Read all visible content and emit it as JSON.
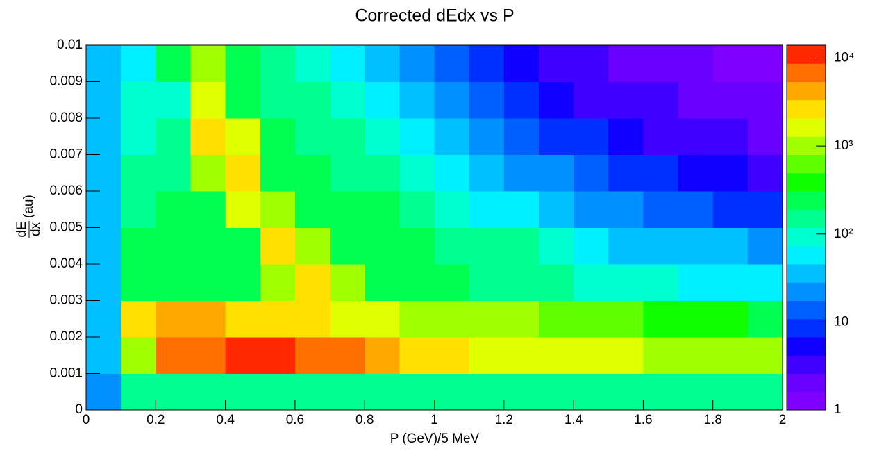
{
  "chart_data": {
    "type": "heatmap",
    "title": "Corrected dEdx vs P",
    "x_label": "P (GeV)/5 MeV",
    "y_label": {
      "numerator": "dE",
      "denominator": "dx",
      "unit": "(au)"
    },
    "xlim": [
      0,
      2
    ],
    "xticks": [
      0,
      0.2,
      0.4,
      0.6,
      0.8,
      1,
      1.2,
      1.4,
      1.6,
      1.8,
      2
    ],
    "ylim": [
      0,
      0.01
    ],
    "yticks": [
      0,
      0.001,
      0.002,
      0.003,
      0.004,
      0.005,
      0.006,
      0.007,
      0.008,
      0.009,
      0.01
    ],
    "x_bins": [
      0,
      0.1,
      0.2,
      0.3,
      0.4,
      0.5,
      0.6,
      0.7,
      0.8,
      0.9,
      1,
      1.1,
      1.2,
      1.3,
      1.4,
      1.5,
      1.6,
      1.7,
      1.8,
      1.9,
      2
    ],
    "y_bins": [
      0,
      0.001,
      0.002,
      0.003,
      0.004,
      0.005,
      0.006,
      0.007,
      0.008,
      0.009,
      0.01
    ],
    "values": [
      [
        20,
        150,
        180,
        180,
        170,
        170,
        160,
        160,
        150,
        150,
        150,
        140,
        140,
        140,
        130,
        130,
        130,
        120,
        120,
        120
      ],
      [
        30,
        1200,
        6000,
        8000,
        9000,
        9000,
        8000,
        7000,
        5000,
        3000,
        2500,
        2000,
        1800,
        1500,
        1400,
        1300,
        1200,
        1100,
        1000,
        1000
      ],
      [
        30,
        3000,
        5000,
        3500,
        3000,
        2800,
        2500,
        2000,
        1500,
        1200,
        1000,
        900,
        800,
        700,
        600,
        500,
        450,
        400,
        350,
        300
      ],
      [
        30,
        300,
        250,
        250,
        300,
        800,
        2500,
        1200,
        300,
        200,
        200,
        180,
        150,
        120,
        100,
        90,
        80,
        70,
        60,
        50
      ],
      [
        30,
        200,
        250,
        250,
        300,
        2500,
        800,
        300,
        200,
        200,
        180,
        150,
        120,
        80,
        60,
        45,
        40,
        35,
        30,
        25
      ],
      [
        30,
        180,
        200,
        250,
        2000,
        1200,
        300,
        200,
        200,
        150,
        100,
        70,
        50,
        35,
        25,
        20,
        15,
        12,
        10,
        8
      ],
      [
        30,
        150,
        150,
        800,
        2500,
        300,
        200,
        180,
        130,
        90,
        60,
        40,
        25,
        18,
        12,
        9,
        7,
        6,
        5,
        4
      ],
      [
        30,
        100,
        120,
        2500,
        1500,
        200,
        170,
        120,
        80,
        50,
        35,
        22,
        15,
        10,
        7,
        5,
        4,
        3,
        3,
        2
      ],
      [
        30,
        80,
        100,
        1500,
        300,
        180,
        120,
        80,
        50,
        30,
        20,
        14,
        9,
        6,
        4,
        3,
        3,
        2,
        2,
        2
      ],
      [
        30,
        60,
        200,
        800,
        200,
        140,
        90,
        60,
        35,
        22,
        14,
        9,
        6,
        4,
        3,
        2,
        2,
        2,
        1,
        1
      ]
    ],
    "zlim": [
      1,
      14000
    ],
    "zlog": true,
    "zticks": [
      1,
      10,
      {
        "value": 100,
        "label": "10²"
      },
      {
        "value": 1000,
        "label": "10³"
      },
      {
        "value": 10000,
        "label": "10⁴"
      }
    ],
    "palette": [
      "#8000ff",
      "#6a00ff",
      "#4000ff",
      "#1000ff",
      "#0030ff",
      "#0060ff",
      "#0090ff",
      "#00c0ff",
      "#00f0ff",
      "#00ffd0",
      "#00ff90",
      "#00ff50",
      "#10ff00",
      "#60ff00",
      "#a0ff00",
      "#e0ff00",
      "#ffe000",
      "#ffa800",
      "#ff7000",
      "#ff2800"
    ]
  }
}
